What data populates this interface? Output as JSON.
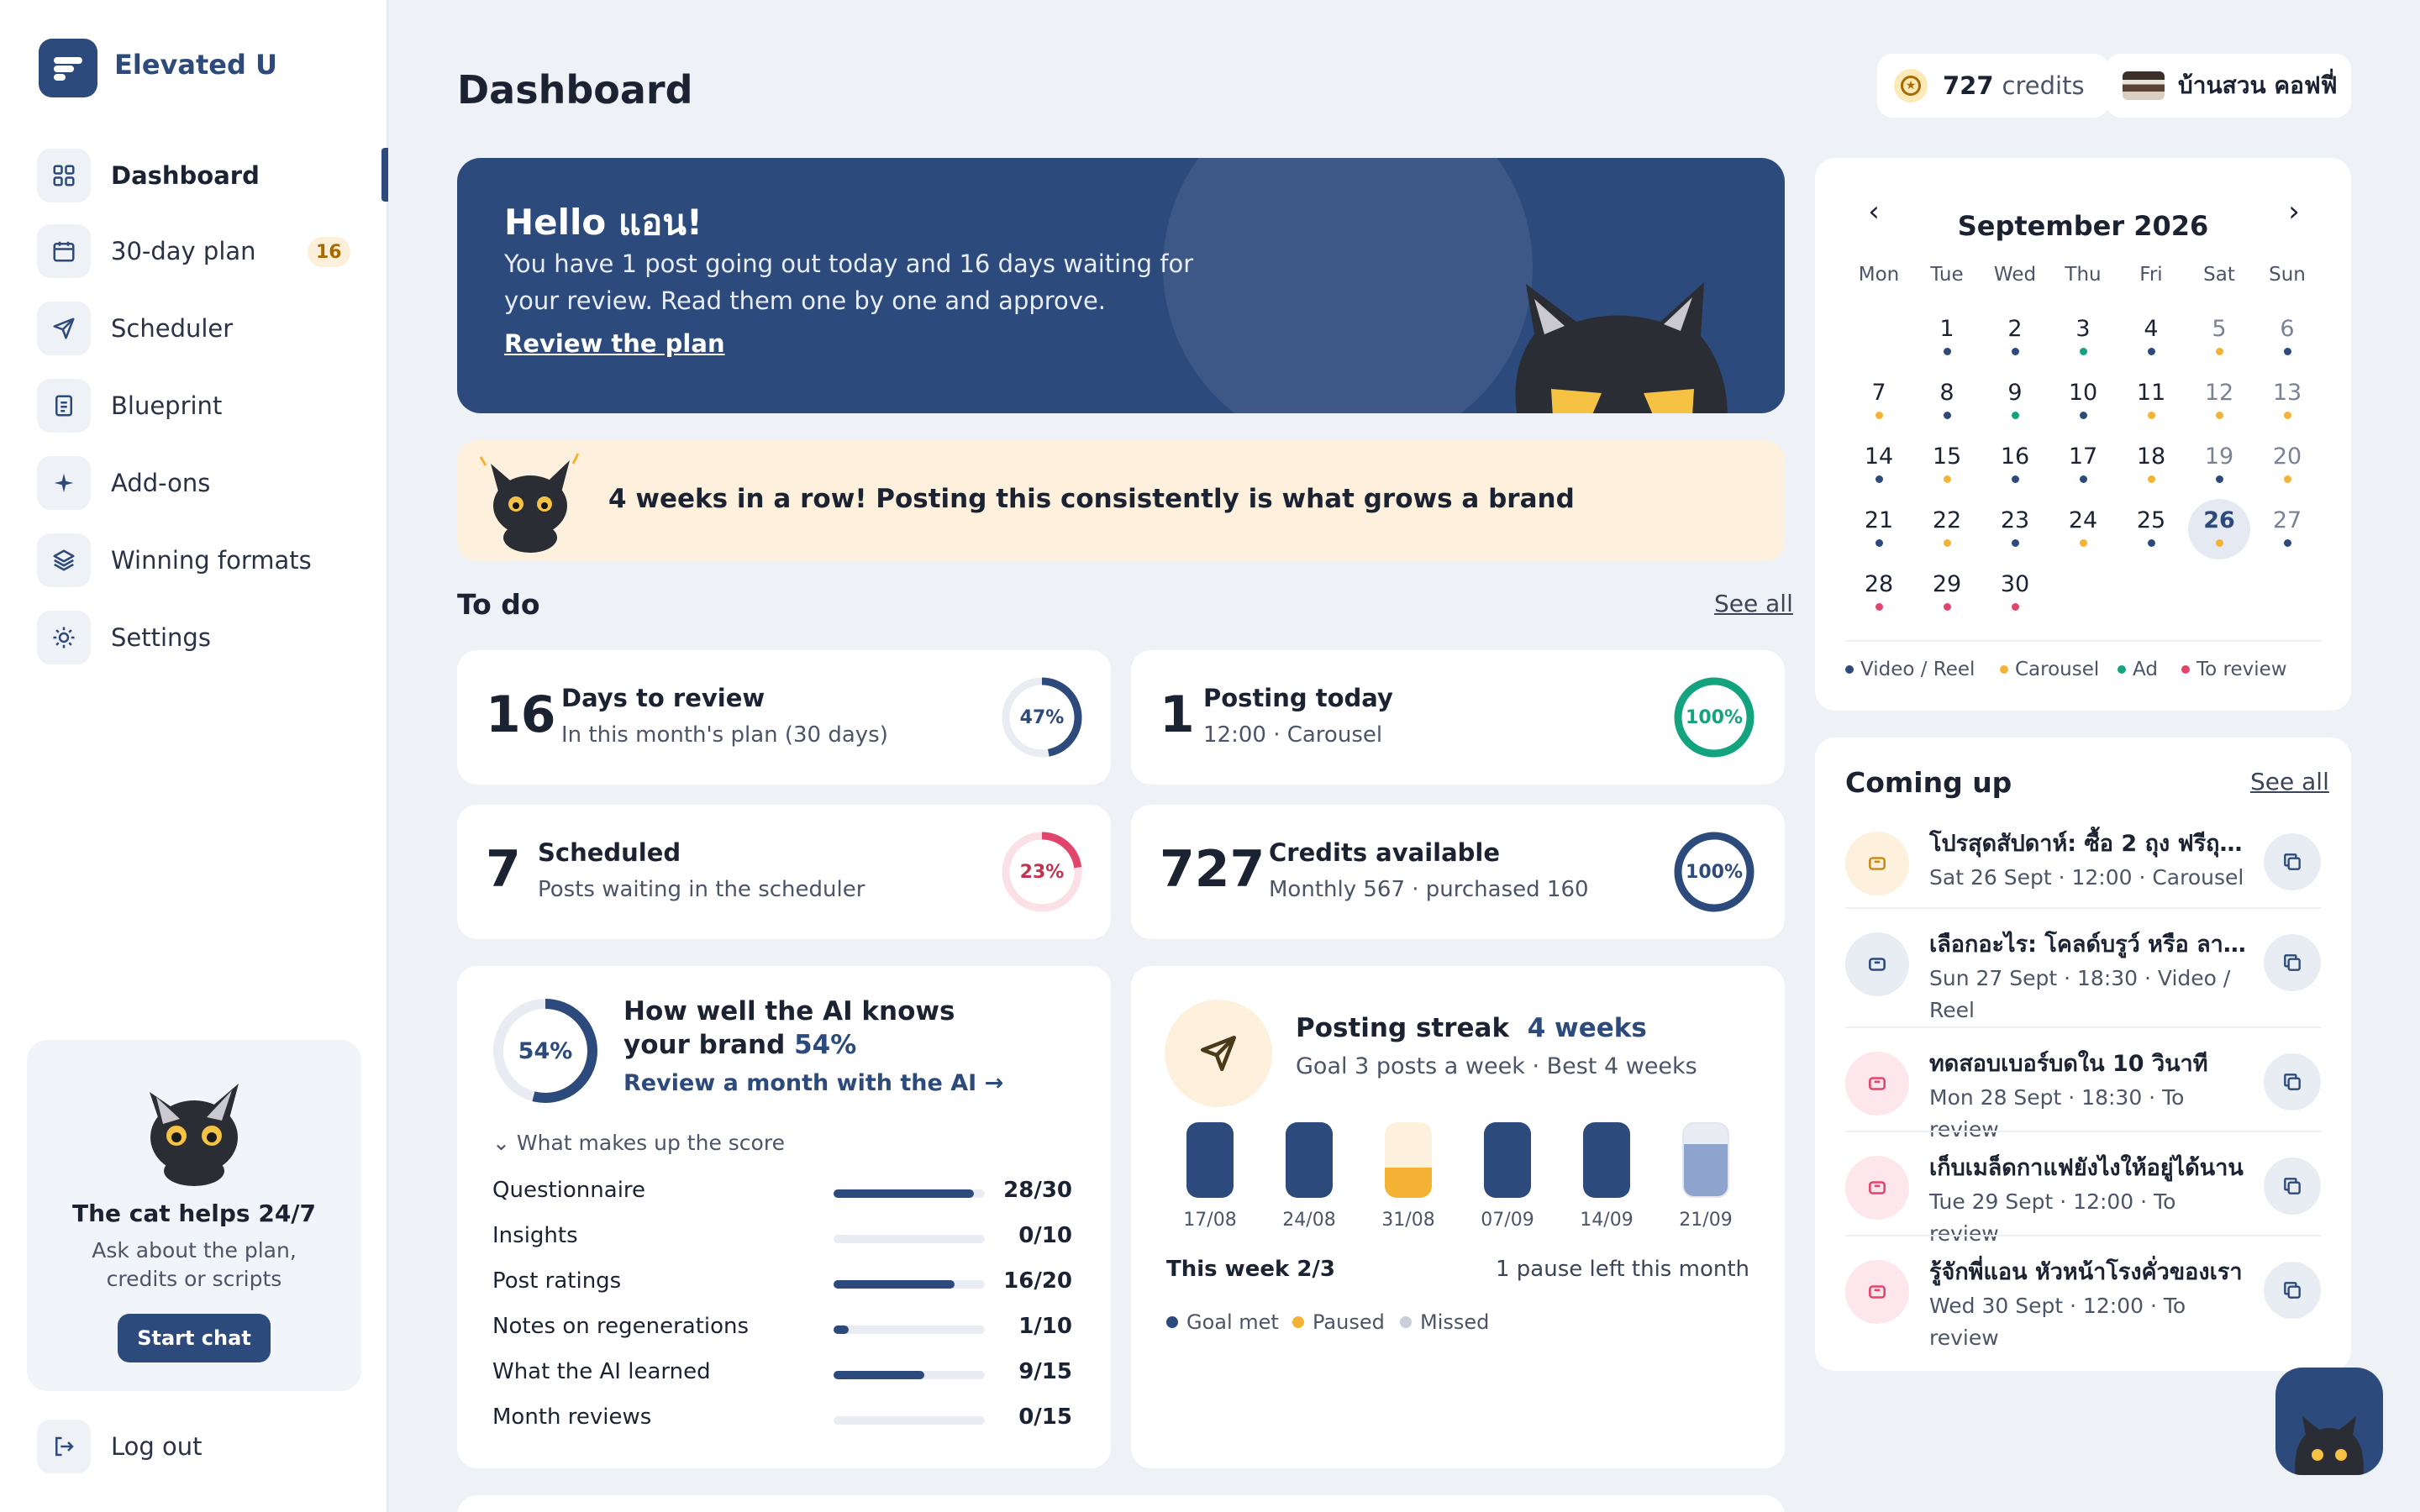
{
  "brand": "Elevated U",
  "nav": [
    {
      "label": "Dashboard",
      "icon": "grid-icon"
    },
    {
      "label": "30-day plan",
      "icon": "calendar-icon",
      "badge": "16"
    },
    {
      "label": "Scheduler",
      "icon": "send-icon"
    },
    {
      "label": "Blueprint",
      "icon": "document-icon"
    },
    {
      "label": "Add-ons",
      "icon": "sparkle-icon"
    },
    {
      "label": "Winning formats",
      "icon": "layers-icon"
    },
    {
      "label": "Settings",
      "icon": "gear-icon"
    }
  ],
  "help": {
    "title": "The cat helps 24/7",
    "desc": "Ask about the plan, credits or scripts",
    "button": "Start chat"
  },
  "logout": "Log out",
  "header": {
    "title": "Dashboard",
    "credits_value": "727",
    "credits_label": "credits",
    "account": "บ้านสวน คอฟฟี่"
  },
  "hero": {
    "title": "Hello แอน!",
    "text": "You have 1 post going out today and 16 days waiting for your review. Read them one by one and approve.",
    "link": "Review the plan"
  },
  "streak_banner": "4 weeks in a row! Posting this consistently is what grows a brand",
  "todo": {
    "title": "To do",
    "see_all": "See all",
    "cards": [
      {
        "num": "16",
        "title": "Days to review",
        "sub": "In this month's plan (30 days)",
        "pct": "47%",
        "color": "#2d4a7c"
      },
      {
        "num": "1",
        "title": "Posting today",
        "sub": "12:00 · Carousel",
        "pct": "100%",
        "color": "#14a37f"
      },
      {
        "num": "7",
        "title": "Scheduled",
        "sub": "Posts waiting in the scheduler",
        "pct": "23%",
        "color": "#e2456c"
      },
      {
        "num": "727",
        "title": "Credits available",
        "sub": "Monthly 567 · purchased 160",
        "pct": "100%",
        "color": "#2d4a7c"
      }
    ]
  },
  "score": {
    "pct": "54%",
    "title_line1": "How well the AI knows",
    "title_line2": "your brand",
    "title_pct": "54%",
    "link": "Review a month with the AI →",
    "toggle": "What makes up the score",
    "rows": [
      {
        "name": "Questionnaire",
        "value": "28/30",
        "frac": 0.93
      },
      {
        "name": "Insights",
        "value": "0/10",
        "frac": 0
      },
      {
        "name": "Post ratings",
        "value": "16/20",
        "frac": 0.8
      },
      {
        "name": "Notes on regenerations",
        "value": "1/10",
        "frac": 0.1
      },
      {
        "name": "What the AI learned",
        "value": "9/15",
        "frac": 0.6
      },
      {
        "name": "Month reviews",
        "value": "0/15",
        "frac": 0
      }
    ]
  },
  "streak": {
    "title": "Posting streak",
    "title_value": "4 weeks",
    "sub": "Goal 3 posts a week · Best 4 weeks",
    "weeks": [
      {
        "label": "17/08",
        "status": "met"
      },
      {
        "label": "24/08",
        "status": "met"
      },
      {
        "label": "31/08",
        "status": "paused"
      },
      {
        "label": "07/09",
        "status": "met"
      },
      {
        "label": "14/09",
        "status": "met"
      },
      {
        "label": "21/09",
        "status": "current"
      }
    ],
    "this_week": "This week 2/3",
    "pause_left": "1 pause left this month",
    "legend": [
      {
        "label": "Goal met",
        "color": "#2d4a7c"
      },
      {
        "label": "Paused",
        "color": "#f5b335"
      },
      {
        "label": "Missed",
        "color": "#c9ced8"
      }
    ]
  },
  "calendar": {
    "month": "September 2026",
    "dow": [
      "Mon",
      "Tue",
      "Wed",
      "Thu",
      "Fri",
      "Sat",
      "Sun"
    ],
    "days": [
      {
        "n": "1",
        "dot": "#2d4a7c"
      },
      {
        "n": "2",
        "dot": "#2d4a7c"
      },
      {
        "n": "3",
        "dot": "#14a37f"
      },
      {
        "n": "4",
        "dot": "#2d4a7c"
      },
      {
        "n": "5",
        "dot": "#f5b335"
      },
      {
        "n": "6",
        "dot": "#2d4a7c"
      },
      {
        "n": "7",
        "dot": "#f5b335"
      },
      {
        "n": "8",
        "dot": "#2d4a7c"
      },
      {
        "n": "9",
        "dot": "#14a37f"
      },
      {
        "n": "10",
        "dot": "#2d4a7c"
      },
      {
        "n": "11",
        "dot": "#f5b335"
      },
      {
        "n": "12",
        "dot": "#f5b335"
      },
      {
        "n": "13",
        "dot": "#f5b335"
      },
      {
        "n": "14",
        "dot": "#2d4a7c"
      },
      {
        "n": "15",
        "dot": "#f5b335"
      },
      {
        "n": "16",
        "dot": "#2d4a7c"
      },
      {
        "n": "17",
        "dot": "#2d4a7c"
      },
      {
        "n": "18",
        "dot": "#f5b335"
      },
      {
        "n": "19",
        "dot": "#2d4a7c"
      },
      {
        "n": "20",
        "dot": "#f5b335"
      },
      {
        "n": "21",
        "dot": "#2d4a7c"
      },
      {
        "n": "22",
        "dot": "#f5b335"
      },
      {
        "n": "23",
        "dot": "#2d4a7c"
      },
      {
        "n": "24",
        "dot": "#f5b335"
      },
      {
        "n": "25",
        "dot": "#2d4a7c"
      },
      {
        "n": "26",
        "dot": "#f5b335",
        "today": true
      },
      {
        "n": "27",
        "dot": "#2d4a7c"
      },
      {
        "n": "28",
        "dot": "#e2456c"
      },
      {
        "n": "29",
        "dot": "#e2456c"
      },
      {
        "n": "30",
        "dot": "#e2456c"
      }
    ],
    "legend": [
      {
        "label": "Video / Reel",
        "color": "#2d4a7c"
      },
      {
        "label": "Carousel",
        "color": "#f5b335"
      },
      {
        "label": "Ad",
        "color": "#14a37f"
      },
      {
        "label": "To review",
        "color": "#e2456c"
      }
    ]
  },
  "upcoming": {
    "title": "Coming up",
    "see_all": "See all",
    "items": [
      {
        "title": "โปรสุดสัปดาห์: ซื้อ 2 ถุง ฟรีถุง...",
        "sub": "Sat 26 Sept · 12:00 · Carousel",
        "bg": "#fdf0dc",
        "fg": "#c98a1a"
      },
      {
        "title": "เลือกอะไร: โคลด์บรูว์ หรือ ลาเต้...",
        "sub": "Sun 27 Sept · 18:30 · Video / Reel",
        "bg": "#e8ecf3",
        "fg": "#2d4a7c"
      },
      {
        "title": "ทดสอบเบอร์บดใน 10 วินาที",
        "sub": "Mon 28 Sept · 18:30 · To review",
        "bg": "#fde6ec",
        "fg": "#e2456c"
      },
      {
        "title": "เก็บเมล็ดกาแฟยังไงให้อยู่ได้นาน",
        "sub": "Tue 29 Sept · 12:00 · To review",
        "bg": "#fde6ec",
        "fg": "#e2456c"
      },
      {
        "title": "รู้จักพี่แอน หัวหน้าโรงคั่วของเรา",
        "sub": "Wed 30 Sept · 12:00 · To review",
        "bg": "#fde6ec",
        "fg": "#e2456c"
      }
    ]
  }
}
